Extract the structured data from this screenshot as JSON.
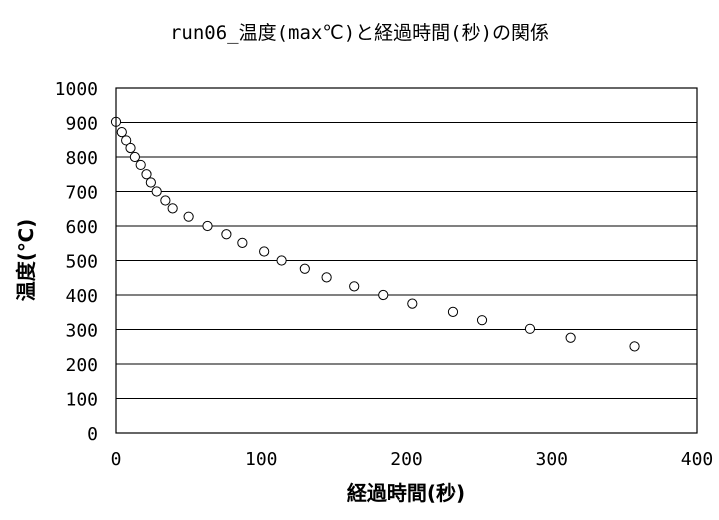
{
  "chart_data": {
    "type": "scatter",
    "title": "run06_温度(max℃)と経過時間(秒)の関係",
    "xlabel": "経過時間(秒)",
    "ylabel": "温度(℃)",
    "xlim": [
      0,
      400
    ],
    "ylim": [
      0,
      1000
    ],
    "xticks": [
      "0",
      "100",
      "200",
      "300",
      "400"
    ],
    "yticks": [
      "0",
      "100",
      "200",
      "300",
      "400",
      "500",
      "600",
      "700",
      "800",
      "900",
      "1000"
    ],
    "grid": "horizontal",
    "marker": "open-circle",
    "series": [
      {
        "points": [
          [
            0,
            902
          ],
          [
            4,
            872
          ],
          [
            7,
            848
          ],
          [
            10,
            826
          ],
          [
            13,
            800
          ],
          [
            17,
            777
          ],
          [
            21,
            750
          ],
          [
            24,
            726
          ],
          [
            28,
            700
          ],
          [
            34,
            674
          ],
          [
            39,
            651
          ],
          [
            50,
            627
          ],
          [
            63,
            600
          ],
          [
            76,
            576
          ],
          [
            87,
            551
          ],
          [
            102,
            526
          ],
          [
            114,
            500
          ],
          [
            130,
            476
          ],
          [
            145,
            451
          ],
          [
            164,
            425
          ],
          [
            184,
            400
          ],
          [
            204,
            375
          ],
          [
            232,
            351
          ],
          [
            252,
            327
          ],
          [
            285,
            302
          ],
          [
            313,
            276
          ],
          [
            357,
            251
          ]
        ]
      }
    ]
  }
}
